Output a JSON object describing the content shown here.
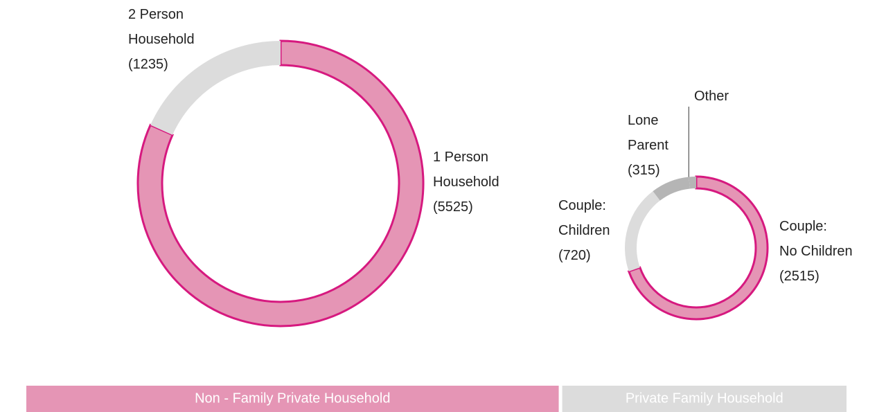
{
  "chart_data": [
    {
      "type": "donut",
      "name": "Non - Family Private Household",
      "bar_color": "#e595b5",
      "categories": [
        [
          "1 Person",
          "Household"
        ],
        [
          "2 Person",
          "Household"
        ]
      ],
      "values": [
        5525,
        1235
      ],
      "value_labels": [
        "(5525)",
        "(1235)"
      ],
      "colors": [
        "#e595b5",
        "#dcdcdc"
      ],
      "edge_colors": [
        "#d6197f",
        null
      ]
    },
    {
      "type": "donut",
      "name": "Private Family Household",
      "bar_color": "#dcdcdc",
      "categories": [
        [
          "Couple:",
          "No Children"
        ],
        [
          "Couple:",
          "Children"
        ],
        [
          "Lone",
          "Parent"
        ],
        [
          "Other"
        ]
      ],
      "values": [
        2515,
        720,
        315,
        60
      ],
      "value_labels": [
        "(2515)",
        "(720)",
        "(315)",
        null
      ],
      "colors": [
        "#e595b5",
        "#dcdcdc",
        "#b5b5b5",
        "#b5b5b5"
      ],
      "edge_colors": [
        "#d6197f",
        null,
        null,
        null
      ]
    }
  ]
}
